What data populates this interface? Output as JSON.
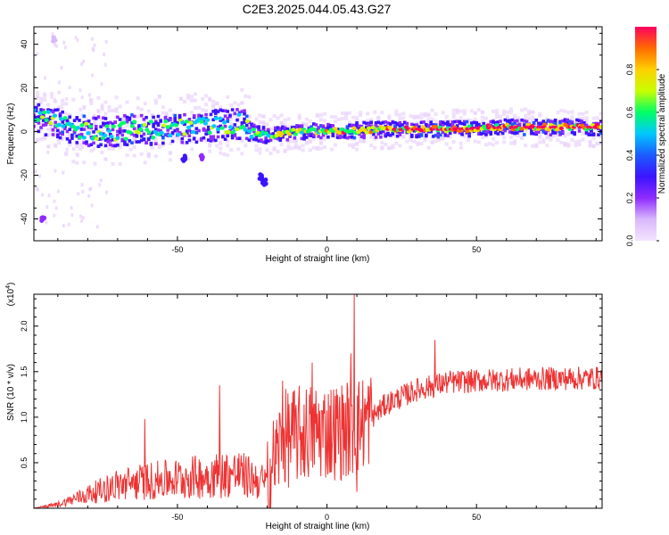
{
  "title": "C2E3.2025.044.05.43.G27",
  "colorbar": {
    "label": "Normalized spectral amplitude",
    "ticks": [
      "0.0",
      "0.2",
      "0.4",
      "0.6",
      "0.8"
    ]
  },
  "chart_data": [
    {
      "type": "heatmap",
      "xlabel": "Height of straight line (km)",
      "ylabel": "Frequency (Hz)",
      "xlim": [
        -98,
        92
      ],
      "ylim": [
        -50,
        48
      ],
      "xticks": [
        -50,
        0,
        50
      ],
      "yticks": [
        -40,
        -20,
        0,
        20,
        40
      ],
      "colorscale": [
        "#f3e4fd",
        "#d9b8fb",
        "#8e2bff",
        "#3b14ff",
        "#1c5bff",
        "#00c8ff",
        "#00ff66",
        "#c8ff00",
        "#ffd000",
        "#ff6a00",
        "#ff0060"
      ],
      "ridge": [
        {
          "x": -95,
          "y": 6
        },
        {
          "x": -85,
          "y": 1
        },
        {
          "x": -75,
          "y": 0
        },
        {
          "x": -60,
          "y": 1
        },
        {
          "x": -45,
          "y": 2
        },
        {
          "x": -35,
          "y": 3
        },
        {
          "x": -28,
          "y": 4
        },
        {
          "x": -25,
          "y": 0
        },
        {
          "x": -20,
          "y": -2
        },
        {
          "x": -10,
          "y": 0
        },
        {
          "x": 0,
          "y": 0
        },
        {
          "x": 20,
          "y": 1
        },
        {
          "x": 40,
          "y": 1
        },
        {
          "x": 60,
          "y": 2
        },
        {
          "x": 80,
          "y": 2
        },
        {
          "x": 92,
          "y": 2
        }
      ],
      "blobs": [
        {
          "x": -22,
          "y": -21,
          "v": 0.3
        },
        {
          "x": -21,
          "y": -23,
          "v": 0.25
        },
        {
          "x": -48,
          "y": -12,
          "v": 0.25
        },
        {
          "x": -42,
          "y": -12,
          "v": 0.2
        },
        {
          "x": -95,
          "y": -40,
          "v": 0.15
        },
        {
          "x": -91,
          "y": 42,
          "v": 0.08
        }
      ]
    },
    {
      "type": "line",
      "xlabel": "Height of straight line (km)",
      "ylabel": "SNR (10 * v/v)",
      "yscale_label": "(x10",
      "yscale_exp": "4",
      "xlim": [
        -98,
        92
      ],
      "ylim": [
        0,
        2.35
      ],
      "xticks": [
        -50,
        0,
        50
      ],
      "yticks": [
        "0.5",
        "1.0",
        "1.5",
        "2.0"
      ],
      "color": "#ee3333",
      "envelope": [
        {
          "x": -98,
          "y": 0.0
        },
        {
          "x": -90,
          "y": 0.05
        },
        {
          "x": -80,
          "y": 0.18
        },
        {
          "x": -70,
          "y": 0.3
        },
        {
          "x": -60,
          "y": 0.35
        },
        {
          "x": -50,
          "y": 0.38
        },
        {
          "x": -40,
          "y": 0.42
        },
        {
          "x": -30,
          "y": 0.45
        },
        {
          "x": -22,
          "y": 0.35
        },
        {
          "x": -20,
          "y": 0.3
        },
        {
          "x": -15,
          "y": 0.75
        },
        {
          "x": -5,
          "y": 0.85
        },
        {
          "x": 5,
          "y": 0.85
        },
        {
          "x": 10,
          "y": 0.9
        },
        {
          "x": 15,
          "y": 1.0
        },
        {
          "x": 20,
          "y": 1.15
        },
        {
          "x": 30,
          "y": 1.3
        },
        {
          "x": 40,
          "y": 1.38
        },
        {
          "x": 50,
          "y": 1.4
        },
        {
          "x": 70,
          "y": 1.42
        },
        {
          "x": 92,
          "y": 1.43
        }
      ],
      "spikes": [
        {
          "x": 9,
          "y": 2.35
        },
        {
          "x": 10,
          "y": 0.18
        },
        {
          "x": 8,
          "y": 1.7
        },
        {
          "x": 36,
          "y": 1.85
        },
        {
          "x": -36,
          "y": 1.35
        },
        {
          "x": -61,
          "y": 0.98
        },
        {
          "x": -5,
          "y": 1.6
        },
        {
          "x": -15,
          "y": 1.4
        }
      ]
    }
  ]
}
